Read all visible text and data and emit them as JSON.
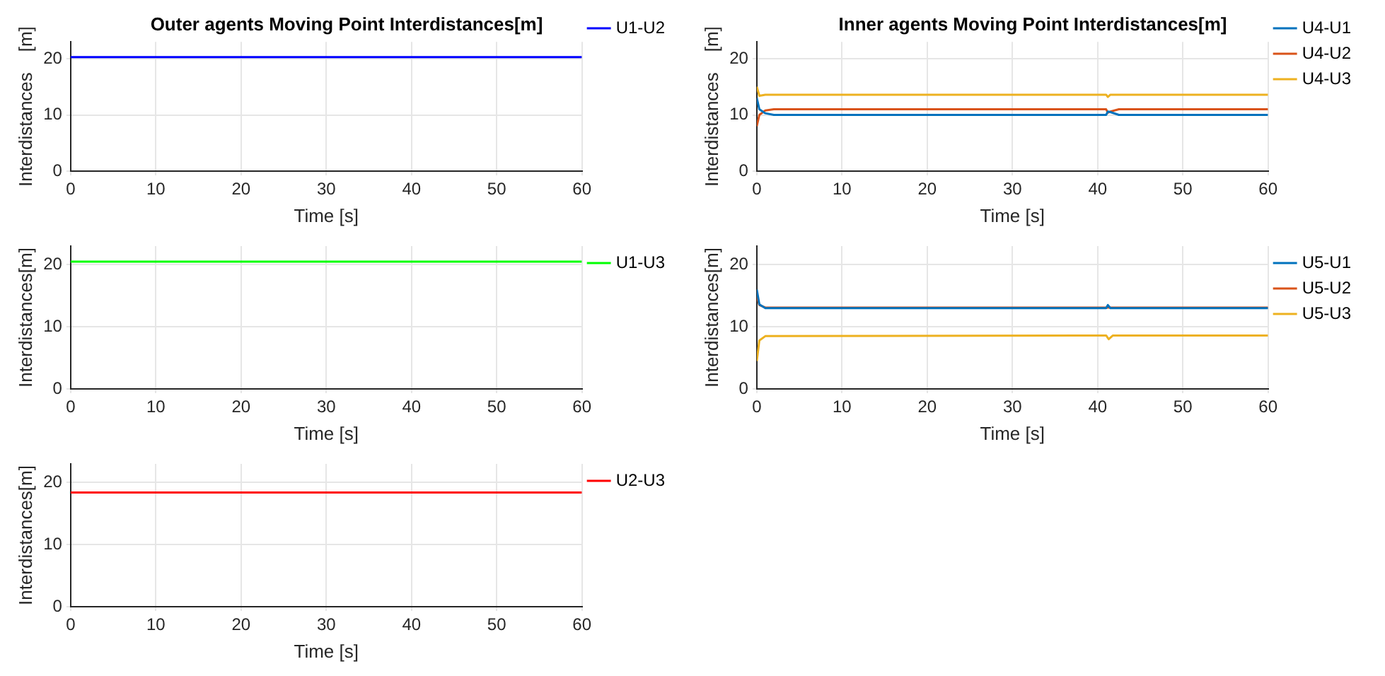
{
  "chart_data": [
    {
      "type": "line",
      "title": "Outer agents Moving Point Interdistances[m]",
      "xlabel": "Time [s]",
      "ylabel": "Interdistances    [m]",
      "xlim": [
        0,
        60
      ],
      "xticks": [
        0,
        10,
        20,
        30,
        40,
        50,
        60
      ],
      "ylim": [
        0,
        23
      ],
      "yticks": [
        0,
        10,
        20
      ],
      "grid": true,
      "legend": "right",
      "marker": "none",
      "line_style": "solid",
      "series": [
        {
          "name": "U1-U2",
          "color": "#0000ff",
          "x": [
            0,
            60
          ],
          "values": [
            20.3,
            20.3
          ]
        }
      ]
    },
    {
      "type": "line",
      "title": "Inner agents Moving Point Interdistances[m]",
      "xlabel": "Time [s]",
      "ylabel": "Interdistances    [m]",
      "xlim": [
        0,
        60
      ],
      "xticks": [
        0,
        10,
        20,
        30,
        40,
        50,
        60
      ],
      "ylim": [
        0,
        23
      ],
      "yticks": [
        0,
        10,
        20
      ],
      "grid": true,
      "legend": "right",
      "marker": "none",
      "line_style": "solid",
      "series": [
        {
          "name": "U4-U1",
          "color": "#0072bd",
          "x": [
            0,
            0.3,
            1,
            2,
            41,
            41.2,
            41.5,
            42.5,
            60
          ],
          "values": [
            13,
            11,
            10.3,
            10,
            10,
            10.6,
            10.5,
            10,
            10
          ]
        },
        {
          "name": "U4-U2",
          "color": "#d95319",
          "x": [
            0,
            0.3,
            1,
            2,
            41,
            41.2,
            41.5,
            42.5,
            60
          ],
          "values": [
            8,
            10,
            10.8,
            11,
            11,
            10.4,
            10.6,
            11,
            11
          ]
        },
        {
          "name": "U4-U3",
          "color": "#edb120",
          "x": [
            0,
            0.3,
            1,
            41,
            41.2,
            41.5,
            60
          ],
          "values": [
            15,
            13.4,
            13.6,
            13.6,
            13.2,
            13.6,
            13.6
          ]
        }
      ]
    },
    {
      "type": "line",
      "xlabel": "Time [s]",
      "ylabel": "Interdistances[m]",
      "xlim": [
        0,
        60
      ],
      "xticks": [
        0,
        10,
        20,
        30,
        40,
        50,
        60
      ],
      "ylim": [
        0,
        23
      ],
      "yticks": [
        0,
        10,
        20
      ],
      "grid": true,
      "legend": "right",
      "marker": "none",
      "line_style": "solid",
      "series": [
        {
          "name": "U1-U3",
          "color": "#00ff00",
          "x": [
            0,
            60
          ],
          "values": [
            20.5,
            20.5
          ]
        }
      ]
    },
    {
      "type": "line",
      "xlabel": "Time [s]",
      "ylabel": "Interdistances[m]",
      "xlim": [
        0,
        60
      ],
      "xticks": [
        0,
        10,
        20,
        30,
        40,
        50,
        60
      ],
      "ylim": [
        0,
        23
      ],
      "yticks": [
        0,
        10,
        20
      ],
      "grid": true,
      "legend": "right",
      "marker": "none",
      "line_style": "solid",
      "series": [
        {
          "name": "U5-U1",
          "color": "#0072bd",
          "x": [
            0,
            0.3,
            1,
            41,
            41.2,
            41.5,
            60
          ],
          "values": [
            16,
            13.6,
            13,
            13,
            13.5,
            13,
            13
          ]
        },
        {
          "name": "U5-U2",
          "color": "#d95319",
          "x": [
            0,
            0.3,
            1,
            60
          ],
          "values": [
            15,
            13.5,
            13.1,
            13.1
          ]
        },
        {
          "name": "U5-U3",
          "color": "#edb120",
          "x": [
            0,
            0.3,
            1,
            41,
            41.3,
            41.8,
            60
          ],
          "values": [
            4.5,
            7.8,
            8.5,
            8.6,
            8,
            8.6,
            8.6
          ]
        }
      ]
    },
    {
      "type": "line",
      "xlabel": "Time [s]",
      "ylabel": "Interdistances[m]",
      "xlim": [
        0,
        60
      ],
      "xticks": [
        0,
        10,
        20,
        30,
        40,
        50,
        60
      ],
      "ylim": [
        0,
        23
      ],
      "yticks": [
        0,
        10,
        20
      ],
      "grid": true,
      "legend": "right",
      "marker": "none",
      "line_style": "solid",
      "series": [
        {
          "name": "U2-U3",
          "color": "#ff0000",
          "x": [
            0,
            60
          ],
          "values": [
            18.4,
            18.4
          ]
        }
      ]
    }
  ]
}
